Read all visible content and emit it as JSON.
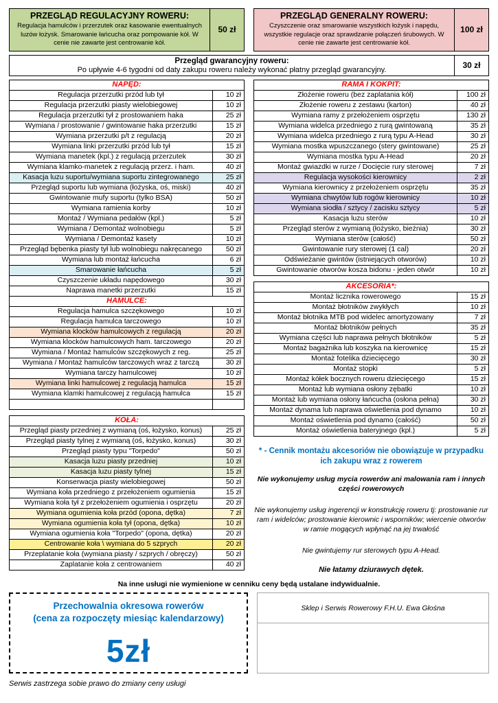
{
  "colors": {
    "regulacyjny_box": "#c3d69b",
    "generalny_box": "#f2c7c7",
    "section_header": "#ff0000",
    "accent_blue": "#0070c0",
    "highlight_blue": "#daeef3",
    "highlight_peach": "#fbe2d1",
    "highlight_green": "#ebf1de",
    "highlight_cream": "#fdf3cf",
    "highlight_yellow": "#feee94",
    "highlight_purple": "#dcd6ec"
  },
  "header": {
    "regulacyjny": {
      "title": "PRZEGLĄD REGULACYJNY ROWERU:",
      "desc": "Regulacja hamulców i przerzutek oraz kasowanie ewentualnych luzów łożysk. Smarowanie łańcucha oraz pompowanie kół. W cenie nie zawarte jest centrowanie kół.",
      "price": "50 zł"
    },
    "generalny": {
      "title": "PRZEGLĄD GENERALNY ROWERU:",
      "desc": "Czyszczenie oraz smarowanie wszystkich łożysk i napędu, wszystkie regulacje oraz sprawdzanie połączeń śrubowych. W cenie nie zawarte jest centrowanie kół.",
      "price": "100 zł"
    },
    "gwarancyjny": {
      "title": "Przegląd gwarancyjny roweru:",
      "desc": "Po upływie 4-6 tygodni od daty zakupu roweru należy wykonać płatny przegląd gwarancyjny.",
      "price": "30 zł"
    }
  },
  "sections": {
    "naped": {
      "title": "NAPĘD:",
      "rows": [
        {
          "label": "Regulacja przerzutki przód lub tył",
          "price": "10 zł"
        },
        {
          "label": "Regulacja przerzutki piasty wielobiegowej",
          "price": "10 zł"
        },
        {
          "label": "Regulacja przerzutki tył z prostowaniem haka",
          "price": "25 zł"
        },
        {
          "label": "Wymiana / prostowanie / gwintowanie haka przerzutki",
          "price": "15 zł"
        },
        {
          "label": "Wymiana przerzutki p/t z regulacją",
          "price": "20 zł"
        },
        {
          "label": "Wymiana linki przerzutki przód lub tył",
          "price": "15 zł"
        },
        {
          "label": "Wymiana manetek (kpl.) z regulacją przerzutek",
          "price": "30 zł"
        },
        {
          "label": "Wymiana klamko-manetek z regulacją przerz. i ham.",
          "price": "40 zł"
        },
        {
          "label": "Kasacja luzu suportu/wymiana suportu zintegrowanego",
          "price": "25 zł",
          "hl": "blue"
        },
        {
          "label": "Przegląd suportu lub wymiana (łożyska, oś, miski)",
          "price": "40 zł"
        },
        {
          "label": "Gwintowanie mufy suportu (tylko BSA)",
          "price": "50 zł"
        },
        {
          "label": "Wymiana ramienia korby",
          "price": "10 zł"
        },
        {
          "label": "Montaż / Wymiana pedałów (kpl.)",
          "price": "5 zł"
        },
        {
          "label": "Wymiana / Demontaż wolnobiegu",
          "price": "5 zł"
        },
        {
          "label": "Wymiana / Demontaż kasety",
          "price": "10 zł"
        },
        {
          "label": "Przegląd bębenka piasty tył lub wolnobiegu nakręcanego",
          "price": "50 zł"
        },
        {
          "label": "Wymiana lub montaż łańcucha",
          "price": "6 zł"
        },
        {
          "label": "Smarowanie łańcucha",
          "price": "5 zł",
          "hl": "blue"
        },
        {
          "label": "Czyszczenie układu napędowego",
          "price": "30 zł"
        },
        {
          "label": "Naprawa manetki przerzutki",
          "price": "15 zł"
        }
      ]
    },
    "hamulce": {
      "title": "HAMULCE:",
      "rows": [
        {
          "label": "Regulacja hamulca szczękowego",
          "price": "10 zł"
        },
        {
          "label": "Regulacja hamulca tarczowego",
          "price": "10 zł"
        },
        {
          "label": "Wymiana klocków hamulcowych z regulacją",
          "price": "20 zł",
          "hl": "peach"
        },
        {
          "label": "Wymiana klocków hamulcowych ham. tarczowego",
          "price": "20 zł"
        },
        {
          "label": "Wymiana / Montaż hamulców szczękowych z reg.",
          "price": "25 zł"
        },
        {
          "label": "Wymiana / Montaż hamulców tarczowych wraz z tarczą",
          "price": "30 zł"
        },
        {
          "label": "Wymiana tarczy hamulcowej",
          "price": "10 zł"
        },
        {
          "label": "Wymiana linki hamulcowej z regulacją hamulca",
          "price": "15 zł",
          "hl": "peach"
        },
        {
          "label": "Wymiana klamki hamulcowej z regulacją hamulca",
          "price": "15 zł"
        },
        {
          "label": "",
          "price": ""
        }
      ]
    },
    "kola": {
      "title": "KOŁA:",
      "rows": [
        {
          "label": "Przegląd piasty przedniej z wymianą (oś, łożysko, konus)",
          "price": "25 zł"
        },
        {
          "label": "Przegląd piasty tylnej z wymianą (oś, łożysko, konus)",
          "price": "30 zł"
        },
        {
          "label": "Przegląd piasty typu \"Torpedo\"",
          "price": "50 zł"
        },
        {
          "label": "Kasacja luzu piasty przedniej",
          "price": "10 zł",
          "hl": "green"
        },
        {
          "label": "Kasacja luzu piasty tylnej",
          "price": "15 zł",
          "hl": "green"
        },
        {
          "label": "Konserwacja piasty wielobiegowej",
          "price": "50 zł"
        },
        {
          "label": "Wymiana koła przedniego z przełożeniem ogumienia",
          "price": "15 zł"
        },
        {
          "label": "Wymiana koła tył z przełożeniem ogumienia i osprzętu",
          "price": "20 zł"
        },
        {
          "label": "Wymiana ogumienia koła przód (opona, dętka)",
          "price": "7 zł",
          "hl": "cream"
        },
        {
          "label": "Wymiana ogumienia koła tył (opona, dętka)",
          "price": "10 zł",
          "hl": "cream"
        },
        {
          "label": "Wymiana ogumienia koła  \"Torpedo\" (opona, dętka)",
          "price": "20 zł"
        },
        {
          "label": "Centrowanie koła \\ wymiana do 5 szprych",
          "price": "20 zł",
          "hl": "yellow"
        },
        {
          "label": "Przeplatanie koła (wymiana piasty / szprych / obręczy)",
          "price": "50 zł"
        },
        {
          "label": "Zaplatanie koła z centrowaniem",
          "price": "40 zł"
        }
      ]
    },
    "rama": {
      "title": "RAMA I KOKPIT:",
      "rows": [
        {
          "label": "Złożenie roweru (bez zaplatania kół)",
          "price": "100 zł"
        },
        {
          "label": "Złożenie roweru z zestawu (karton)",
          "price": "40 zł"
        },
        {
          "label": "Wymiana ramy z przełożeniem osprzętu",
          "price": "130 zł"
        },
        {
          "label": "Wymiana widelca przedniego z rurą gwintowaną",
          "price": "35 zł"
        },
        {
          "label": "Wymiana widelca przedniego z rurą typu A-Head",
          "price": "30 zł"
        },
        {
          "label": "Wymiana mostka wpuszczanego (stery gwintowane)",
          "price": "25 zł"
        },
        {
          "label": "Wymiana mostka typu A-Head",
          "price": "20 zł"
        },
        {
          "label": "Montaż gwiazdki w rurze / Docięcie rury sterowej",
          "price": "7 zł"
        },
        {
          "label": "Regulacja wysokości kierownicy",
          "price": "2 zł",
          "hl": "purple"
        },
        {
          "label": "Wymiana kierownicy z przełożeniem osprzętu",
          "price": "35 zł"
        },
        {
          "label": "Wymiana chwytów lub rogów kierownicy",
          "price": "10 zł",
          "hl": "purple"
        },
        {
          "label": "Wymiana siodła / sztycy / zacisku sztycy",
          "price": "5 zł",
          "hl": "purple"
        },
        {
          "label": "Kasacja luzu sterów",
          "price": "10 zł"
        },
        {
          "label": "Przegląd sterów z wymianą (łożysko, bieżnia)",
          "price": "30 zł"
        },
        {
          "label": "Wymiana sterów (całość)",
          "price": "50 zł"
        },
        {
          "label": "Gwintowanie rury sterowej (1 cal)",
          "price": "20 zł"
        },
        {
          "label": "Odświeżanie gwintów (istniejących otworów)",
          "price": "10 zł"
        },
        {
          "label": "Gwintowanie otworów kosza bidonu - jeden otwór",
          "price": "10 zł"
        }
      ]
    },
    "akcesoria": {
      "title": "AKCESORIA*:",
      "rows": [
        {
          "label": "Montaż licznika rowerowego",
          "price": "15 zł"
        },
        {
          "label": "Montaż błotników zwykłych",
          "price": "10 zł"
        },
        {
          "label": "Montaż błotnika MTB pod widelec amortyzowany",
          "price": "7 zł"
        },
        {
          "label": "Montaż błotników pełnych",
          "price": "35 zł"
        },
        {
          "label": "Wymiana części lub naprawa pełnych błotników",
          "price": "5 zł"
        },
        {
          "label": "Montaż bagażnika lub koszyka na kierownicę",
          "price": "15 zł"
        },
        {
          "label": "Montaż fotelika dziecięcego",
          "price": "30 zł"
        },
        {
          "label": "Montaż stopki",
          "price": "5 zł"
        },
        {
          "label": "Montaż kółek bocznych roweru dziecięcego",
          "price": "15 zł"
        },
        {
          "label": "Montaż lub wymiana osłony zębatki",
          "price": "10 zł"
        },
        {
          "label": "Montaż lub wymiana osłony łańcucha (osłona pełna)",
          "price": "30 zł"
        },
        {
          "label": "Montaż dynama lub naprawa oświetlenia pod dynamo",
          "price": "10 zł"
        },
        {
          "label": "Montaż oświetlenia pod dynamo (całość)",
          "price": "50 zł"
        },
        {
          "label": "Montaż oświetlenia bateryjnego (kpl.)",
          "price": "5 zł"
        }
      ]
    }
  },
  "notes": {
    "accessories": "* - Cennik montażu akcesoriów nie obowiązuje w przypadku ich zakupu wraz z rowerem",
    "no_washing": "Nie wykonujemy usług mycia rowerów ani malowania ram i innych części rowerowych",
    "no_structure": "Nie wykonujemy usług ingerencji w konstrukcję roweru tj: prostowanie rur ram i widelców; prostowanie kierownic i wsporników; wiercenie otworów w ramie mogących wpłynąć na jej trwałość",
    "no_threading": "Nie gwintujemy rur sterowych typu A-Head.",
    "no_patching": "Nie łatamy dziurawych dętek."
  },
  "footer": {
    "individual": "Na inne usługi nie wymienione w cenniku ceny będą ustalane indywidualnie.",
    "storage": {
      "title_line1": "Przechowalnia okresowa rowerów",
      "title_line2": "(cena za rozpoczęty miesiąc kalendarzowy)",
      "price": "5zł"
    },
    "shop_name": "Sklep i Serwis Rowerowy F.H.U. Ewa Głośna",
    "disclaimer": "Serwis zastrzega sobie prawo do zmiany ceny usługi"
  }
}
